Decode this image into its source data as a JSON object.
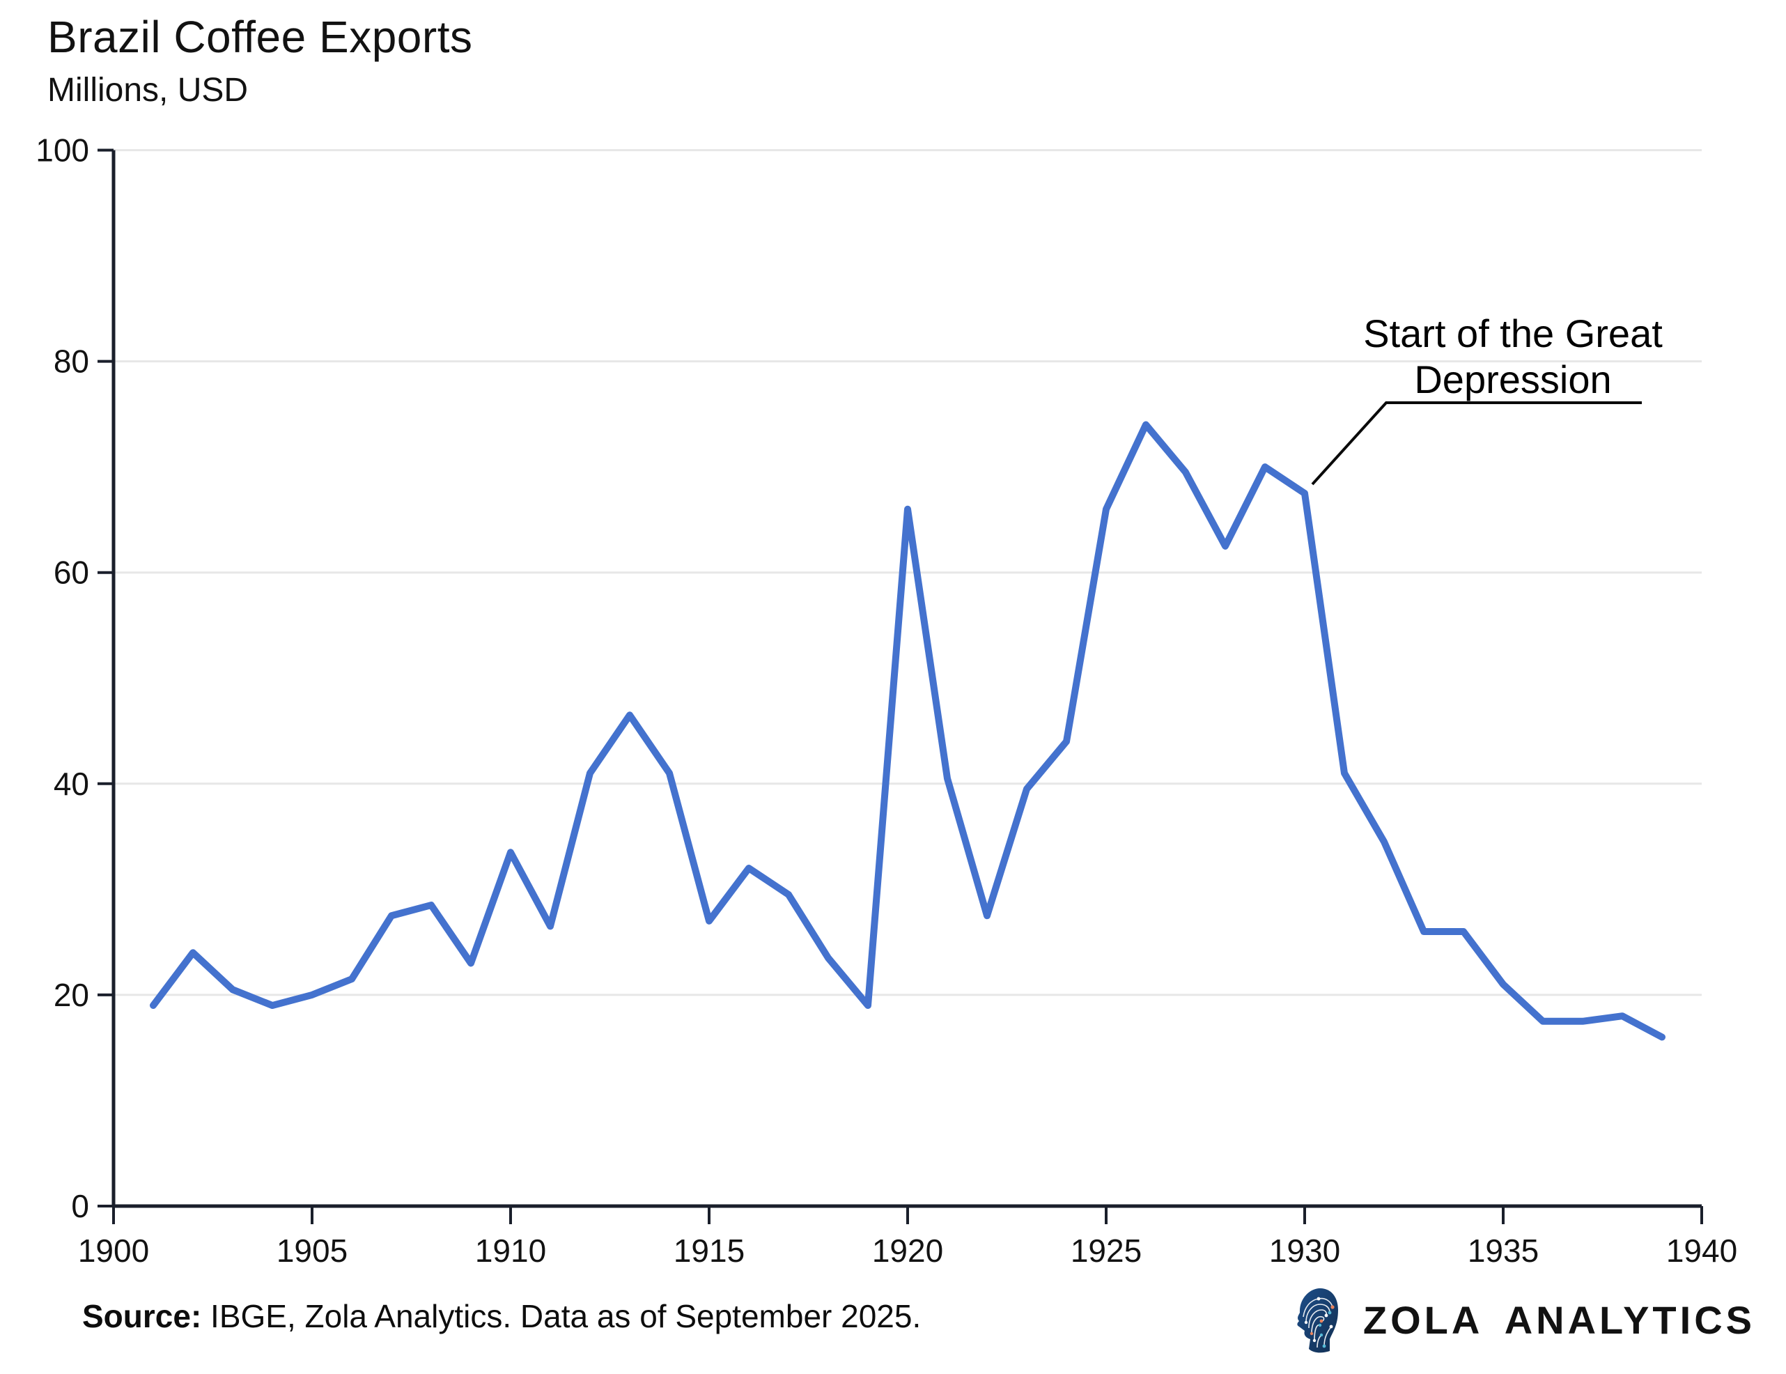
{
  "header": {
    "title": "Brazil Coffee Exports",
    "subtitle": "Millions, USD"
  },
  "annotation": {
    "line1": "Start of the Great",
    "line2": "Depression",
    "target_year": 1930
  },
  "footer": {
    "source_label": "Source:",
    "source_text": " IBGE, Zola Analytics. Data as of September 2025."
  },
  "branding": {
    "logo_icon": "circuit-head-logo",
    "name": "ZOLA ANALYTICS",
    "logo_colors": {
      "head": "#16365c",
      "head_edge": "#1d4e89",
      "traces": "#ffffff",
      "dot_orange": "#e8835d",
      "dot_teal": "#55b9d6"
    }
  },
  "chart_data": {
    "type": "line",
    "title": "Brazil Coffee Exports",
    "ylabel": "Millions, USD",
    "xlabel": "",
    "x": [
      1901,
      1902,
      1903,
      1904,
      1905,
      1906,
      1907,
      1908,
      1909,
      1910,
      1911,
      1912,
      1913,
      1914,
      1915,
      1916,
      1917,
      1918,
      1919,
      1920,
      1921,
      1922,
      1923,
      1924,
      1925,
      1926,
      1927,
      1928,
      1929,
      1930,
      1931,
      1932,
      1933,
      1934,
      1935,
      1936,
      1937,
      1938,
      1939
    ],
    "values": [
      19,
      24,
      20.5,
      19,
      20,
      21.5,
      27.5,
      28.5,
      23,
      33.5,
      26.5,
      41,
      46.5,
      41,
      27,
      32,
      29.5,
      23.5,
      19,
      66,
      40.5,
      27.5,
      39.5,
      44,
      66,
      74,
      69.5,
      62.5,
      70,
      67.5,
      41,
      34.5,
      26,
      26,
      21,
      17.5,
      17.5,
      18,
      16
    ],
    "xlim": [
      1900,
      1940
    ],
    "ylim": [
      0,
      100
    ],
    "x_ticks": [
      1900,
      1905,
      1910,
      1915,
      1920,
      1925,
      1930,
      1935,
      1940
    ],
    "y_ticks": [
      0,
      20,
      40,
      60,
      80,
      100
    ],
    "grid": "horizontal",
    "legend": "none",
    "line_color": "#4472CE",
    "grid_color": "#e7e7e7",
    "axis_color": "#1a1f2b"
  }
}
